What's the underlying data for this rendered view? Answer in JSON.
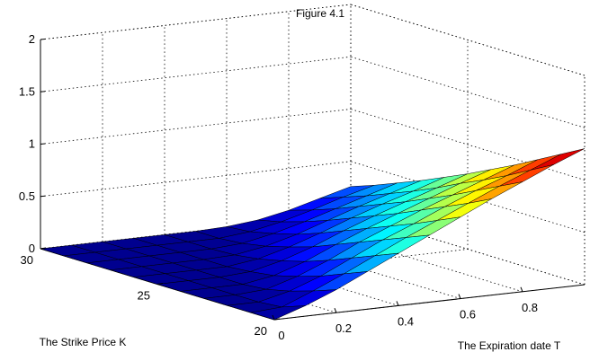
{
  "chart_data": {
    "type": "surface3d",
    "title": "Figure 4.1",
    "xlabel": "The Expiration date T",
    "ylabel": "The Strike Price K",
    "zlabel": "",
    "xlim": [
      0,
      1
    ],
    "ylim": [
      20,
      30
    ],
    "zlim": [
      0,
      2
    ],
    "x_ticks": [
      {
        "value": 0,
        "label": "0"
      },
      {
        "value": 0.2,
        "label": "0.2"
      },
      {
        "value": 0.4,
        "label": "0.4"
      },
      {
        "value": 0.6,
        "label": "0.6"
      },
      {
        "value": 0.8,
        "label": "0.8"
      }
    ],
    "y_ticks": [
      {
        "value": 20,
        "label": "20"
      },
      {
        "value": 25,
        "label": "25"
      },
      {
        "value": 30,
        "label": "30"
      }
    ],
    "z_ticks": [
      {
        "value": 0,
        "label": "0"
      },
      {
        "value": 0.5,
        "label": "0.5"
      },
      {
        "value": 1,
        "label": "1"
      },
      {
        "value": 1.5,
        "label": "1.5"
      },
      {
        "value": 2,
        "label": "2"
      }
    ],
    "colormap": [
      "#00008f",
      "#0000ff",
      "#0080ff",
      "#00ffff",
      "#80ff80",
      "#ffff00",
      "#ff8000",
      "#ff0000",
      "#800000"
    ],
    "grid": true,
    "x": [
      0,
      0.1,
      0.2,
      0.3,
      0.4,
      0.5,
      0.6,
      0.7,
      0.8,
      0.9,
      1.0
    ],
    "y": [
      20,
      21,
      22,
      23,
      24,
      25,
      26,
      27,
      28,
      29,
      30
    ],
    "z": [
      [
        0.0,
        0.1,
        0.22,
        0.36,
        0.5,
        0.64,
        0.78,
        0.92,
        1.05,
        1.18,
        1.3
      ],
      [
        0.0,
        0.02,
        0.14,
        0.27,
        0.41,
        0.55,
        0.68,
        0.81,
        0.94,
        1.06,
        1.18
      ],
      [
        0.0,
        0.0,
        0.07,
        0.18,
        0.32,
        0.46,
        0.58,
        0.71,
        0.83,
        0.94,
        1.06
      ],
      [
        0.0,
        0.0,
        0.02,
        0.11,
        0.23,
        0.37,
        0.49,
        0.61,
        0.72,
        0.83,
        0.94
      ],
      [
        0.0,
        0.0,
        0.0,
        0.05,
        0.15,
        0.28,
        0.4,
        0.51,
        0.62,
        0.73,
        0.83
      ],
      [
        0.0,
        0.0,
        0.0,
        0.02,
        0.09,
        0.19,
        0.31,
        0.42,
        0.52,
        0.62,
        0.72
      ],
      [
        0.0,
        0.0,
        0.0,
        0.0,
        0.04,
        0.12,
        0.22,
        0.33,
        0.43,
        0.52,
        0.62
      ],
      [
        0.0,
        0.0,
        0.0,
        0.0,
        0.01,
        0.06,
        0.14,
        0.24,
        0.34,
        0.43,
        0.52
      ],
      [
        0.0,
        0.0,
        0.0,
        0.0,
        0.0,
        0.02,
        0.08,
        0.16,
        0.25,
        0.34,
        0.43
      ],
      [
        0.0,
        0.0,
        0.0,
        0.0,
        0.0,
        0.0,
        0.03,
        0.09,
        0.17,
        0.26,
        0.34
      ],
      [
        0.0,
        0.0,
        0.0,
        0.0,
        0.0,
        0.0,
        0.01,
        0.04,
        0.1,
        0.18,
        0.26
      ]
    ]
  }
}
